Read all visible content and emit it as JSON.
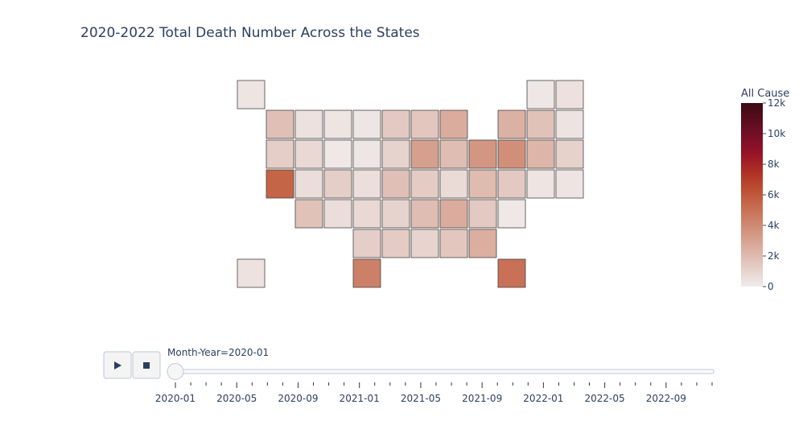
{
  "chart_data": {
    "type": "choropleth",
    "title": "2020-2022 Total Death Number Across the States",
    "values": [
      300,
      450,
      200,
      1800,
      450,
      300,
      250,
      1400,
      1500,
      2600,
      2400,
      1700,
      350,
      1200,
      800,
      150,
      250,
      1000,
      3100,
      1900,
      3500,
      3800,
      2200,
      1100,
      5500,
      600,
      1200,
      550,
      1800,
      1300,
      700,
      2000,
      1400,
      300,
      300,
      1700,
      600,
      800,
      1000,
      1900,
      2600,
      1400,
      150,
      1200,
      1300,
      950,
      1500,
      2500,
      400,
      4400,
      5000
    ],
    "colorbar_title": "All Cause",
    "zlim": [
      0,
      12000
    ],
    "zticks": [
      0,
      {
        "value": 2000,
        "label": "2k"
      },
      {
        "value": 4000,
        "label": "4k"
      },
      {
        "value": 6000,
        "label": "6k"
      },
      {
        "value": 8000,
        "label": "8k"
      },
      {
        "value": 10000,
        "label": "10k"
      },
      {
        "value": 12000,
        "label": "12k"
      }
    ],
    "colorscale": [
      "#f1ecec",
      "#e6d1cb",
      "#ddb6aa",
      "#d59c89",
      "#cd8169",
      "#c46649",
      "#ba4a2f",
      "#ac2c24",
      "#951327",
      "#780e28",
      "#590d1f",
      "#3c0913"
    ],
    "slider": {
      "current_label": "Month-Year=2020-01",
      "active": 0,
      "steps": [
        "2020-01",
        null,
        null,
        null,
        "2020-05",
        null,
        null,
        null,
        "2020-09",
        null,
        null,
        null,
        "2021-01",
        null,
        null,
        null,
        "2021-05",
        null,
        null,
        null,
        "2021-09",
        null,
        null,
        null,
        "2022-01",
        null,
        null,
        null,
        "2022-05",
        null,
        null,
        null,
        "2022-09",
        null,
        null,
        null
      ]
    }
  }
}
